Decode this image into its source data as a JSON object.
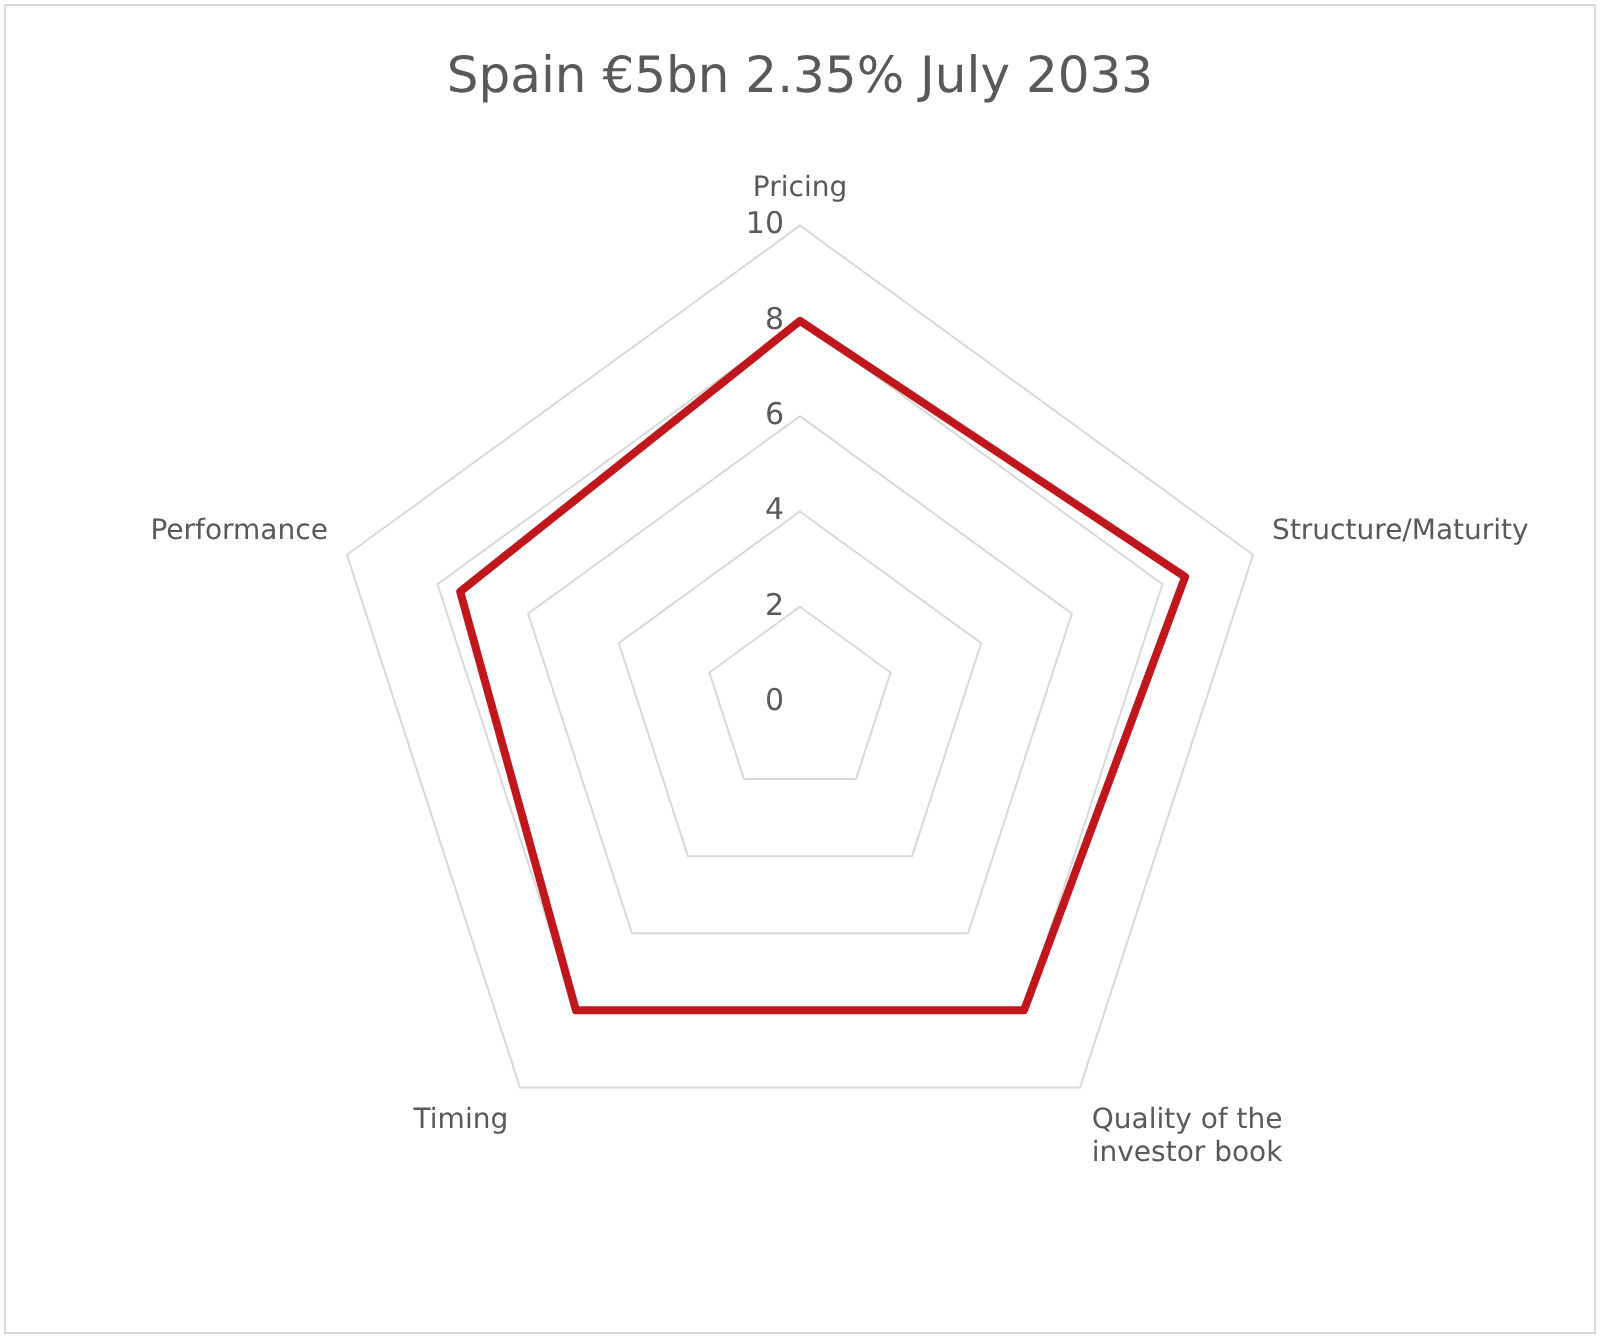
{
  "chart_data": {
    "type": "radar",
    "title": "Spain €5bn 2.35% July 2033",
    "categories": [
      "Pricing",
      "Structure/Maturity",
      "Quality of the investor book",
      "Timing",
      "Performance"
    ],
    "series": [
      {
        "color": "#c0171c",
        "values": [
          8,
          8.5,
          8,
          8,
          7.5
        ]
      }
    ],
    "ylim": [
      0,
      10
    ],
    "yticks": [
      0,
      2,
      4,
      6,
      8,
      10
    ],
    "grid": true,
    "marker": "none",
    "line_style": "solid"
  }
}
